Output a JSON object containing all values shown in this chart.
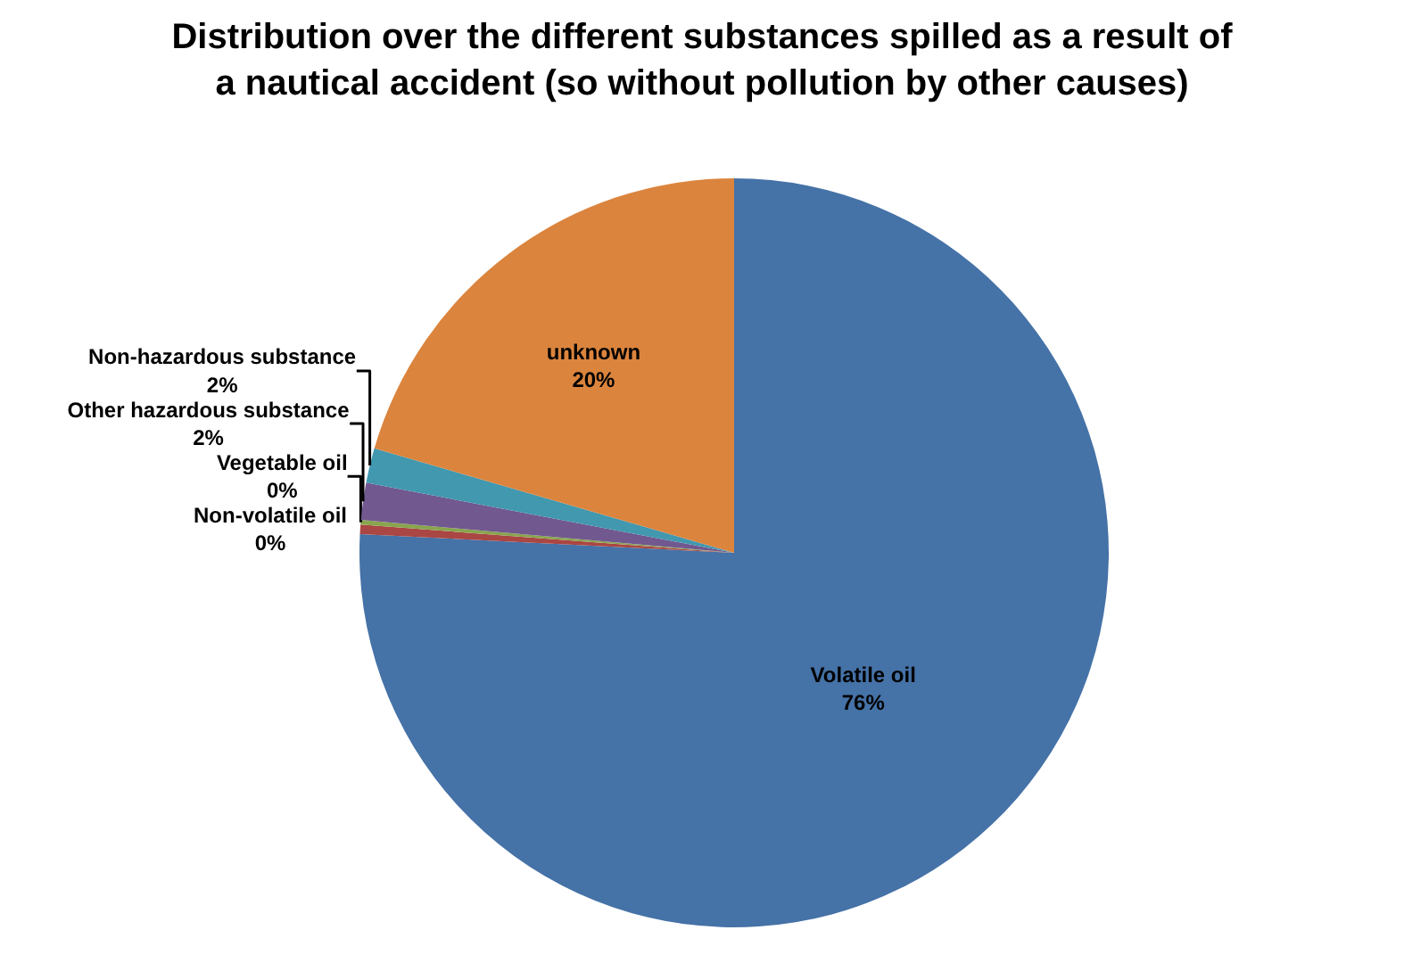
{
  "chart_data": {
    "type": "pie",
    "title": "Distribution over the different substances spilled as a result of\na nautical accident (so without pollution by other causes)",
    "categories": [
      "Volatile oil",
      "Non-volatile oil",
      "Vegetable oil",
      "Other hazardous substance",
      "Non-hazardous substance",
      "unknown"
    ],
    "values": [
      75.8,
      0.4,
      0.2,
      1.6,
      1.5,
      20.5
    ],
    "value_labels": [
      "76%",
      "0%",
      "0%",
      "2%",
      "2%",
      "20%"
    ],
    "colors": [
      "#4572a7",
      "#aa4643",
      "#89a54e",
      "#71588f",
      "#4198af",
      "#db843d"
    ],
    "legend": false
  }
}
